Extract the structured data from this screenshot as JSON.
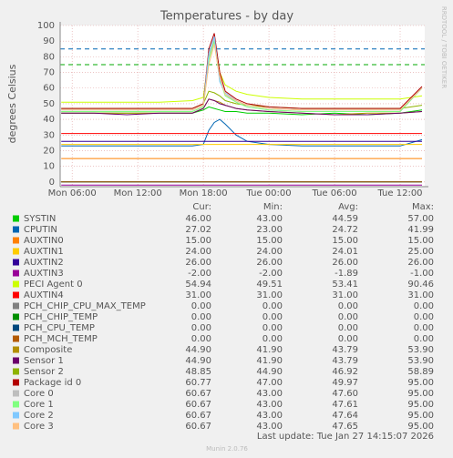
{
  "chart_data": {
    "type": "line",
    "title": "Temperatures - by day",
    "y_label": "degrees Celsius",
    "side_label": "RRDTOOL / TOBI OETIKER",
    "legend_headers": [
      "Cur:",
      "Min:",
      "Avg:",
      "Max:"
    ],
    "last_update": "Last update: Tue Jan 27 14:15:07 2026",
    "footer": "Munin 2.0.76",
    "grid": true,
    "xlim": [
      4.9,
      38.25
    ],
    "xticks": [
      {
        "value": 6,
        "label": "Mon 06:00"
      },
      {
        "value": 12,
        "label": "Mon 12:00"
      },
      {
        "value": 18,
        "label": "Mon 18:00"
      },
      {
        "value": 24,
        "label": "Tue 00:00"
      },
      {
        "value": 30,
        "label": "Tue 06:00"
      },
      {
        "value": 36,
        "label": "Tue 12:00"
      }
    ],
    "ylim": [
      -3,
      100
    ],
    "yticks": [
      0,
      10,
      20,
      30,
      40,
      50,
      60,
      70,
      80,
      90,
      100
    ],
    "hlines": [
      {
        "value": 85,
        "color": "#0066b3"
      },
      {
        "value": 75,
        "color": "#00aa00"
      }
    ],
    "x": [
      5,
      8,
      11,
      14,
      17,
      18,
      18.5,
      19,
      19.5,
      20,
      21,
      22,
      24,
      27,
      30,
      33,
      36,
      38
    ],
    "series": [
      {
        "name": "SYSTIN",
        "color": "#00cc00",
        "stats": [
          "46.00",
          "43.00",
          "44.59",
          "57.00"
        ],
        "values": [
          44,
          44,
          44,
          44,
          44,
          46,
          48,
          47,
          46,
          45,
          45,
          44,
          44,
          43,
          44,
          43,
          44,
          46
        ]
      },
      {
        "name": "CPUTIN",
        "color": "#0066b3",
        "stats": [
          "27.02",
          "23.00",
          "24.72",
          "41.99"
        ],
        "values": [
          23,
          23,
          23,
          23,
          23,
          24,
          33,
          38,
          40,
          37,
          30,
          26,
          24,
          23,
          23,
          23,
          23,
          27
        ]
      },
      {
        "name": "AUXTIN0",
        "color": "#ff8000",
        "stats": [
          "15.00",
          "15.00",
          "15.00",
          "15.00"
        ],
        "values": [
          15,
          15,
          15,
          15,
          15,
          15,
          15,
          15,
          15,
          15,
          15,
          15,
          15,
          15,
          15,
          15,
          15,
          15
        ]
      },
      {
        "name": "AUXTIN1",
        "color": "#ffcc00",
        "stats": [
          "24.00",
          "24.00",
          "24.01",
          "25.00"
        ],
        "values": [
          24,
          24,
          24,
          24,
          24,
          24,
          24,
          24,
          24,
          24,
          24,
          24,
          24,
          24,
          24,
          24,
          24,
          24
        ]
      },
      {
        "name": "AUXTIN2",
        "color": "#330099",
        "stats": [
          "26.00",
          "26.00",
          "26.00",
          "26.00"
        ],
        "values": [
          26,
          26,
          26,
          26,
          26,
          26,
          26,
          26,
          26,
          26,
          26,
          26,
          26,
          26,
          26,
          26,
          26,
          26
        ]
      },
      {
        "name": "AUXTIN3",
        "color": "#990099",
        "stats": [
          "-2.00",
          "-2.00",
          "-1.89",
          "-1.00"
        ],
        "values": [
          -2,
          -2,
          -2,
          -2,
          -2,
          -2,
          -2,
          -2,
          -2,
          -2,
          -2,
          -2,
          -2,
          -2,
          -2,
          -2,
          -2,
          -2
        ]
      },
      {
        "name": "PECI Agent 0",
        "color": "#ccff00",
        "stats": [
          "54.94",
          "49.51",
          "53.41",
          "90.46"
        ],
        "values": [
          51,
          51,
          51,
          51,
          52,
          54,
          80,
          90,
          70,
          62,
          58,
          56,
          54,
          53,
          53,
          53,
          53,
          55
        ]
      },
      {
        "name": "AUXTIN4",
        "color": "#ff0000",
        "stats": [
          "31.00",
          "31.00",
          "31.00",
          "31.00"
        ],
        "values": [
          31,
          31,
          31,
          31,
          31,
          31,
          31,
          31,
          31,
          31,
          31,
          31,
          31,
          31,
          31,
          31,
          31,
          31
        ]
      },
      {
        "name": "PCH_CHIP_CPU_MAX_TEMP",
        "color": "#808080",
        "stats": [
          "0.00",
          "0.00",
          "0.00",
          "0.00"
        ],
        "values": [
          0,
          0,
          0,
          0,
          0,
          0,
          0,
          0,
          0,
          0,
          0,
          0,
          0,
          0,
          0,
          0,
          0,
          0
        ]
      },
      {
        "name": "PCH_CHIP_TEMP",
        "color": "#008f00",
        "stats": [
          "0.00",
          "0.00",
          "0.00",
          "0.00"
        ],
        "values": [
          0,
          0,
          0,
          0,
          0,
          0,
          0,
          0,
          0,
          0,
          0,
          0,
          0,
          0,
          0,
          0,
          0,
          0
        ]
      },
      {
        "name": "PCH_CPU_TEMP",
        "color": "#00487d",
        "stats": [
          "0.00",
          "0.00",
          "0.00",
          "0.00"
        ],
        "values": [
          0,
          0,
          0,
          0,
          0,
          0,
          0,
          0,
          0,
          0,
          0,
          0,
          0,
          0,
          0,
          0,
          0,
          0
        ]
      },
      {
        "name": "PCH_MCH_TEMP",
        "color": "#b35a00",
        "stats": [
          "0.00",
          "0.00",
          "0.00",
          "0.00"
        ],
        "values": [
          0,
          0,
          0,
          0,
          0,
          0,
          0,
          0,
          0,
          0,
          0,
          0,
          0,
          0,
          0,
          0,
          0,
          0
        ]
      },
      {
        "name": "Composite",
        "color": "#b38f00",
        "stats": [
          "44.90",
          "41.90",
          "43.79",
          "53.90"
        ],
        "values": [
          44,
          44,
          44,
          44,
          44,
          47,
          53,
          52,
          51,
          49,
          47,
          46,
          45,
          44,
          43,
          44,
          44,
          45
        ]
      },
      {
        "name": "Sensor 1",
        "color": "#6b006b",
        "stats": [
          "44.90",
          "41.90",
          "43.79",
          "53.90"
        ],
        "values": [
          44,
          44,
          43,
          44,
          44,
          47,
          53,
          52,
          50,
          49,
          47,
          46,
          45,
          44,
          43,
          43,
          44,
          45
        ]
      },
      {
        "name": "Sensor 2",
        "color": "#8fb300",
        "stats": [
          "48.85",
          "44.90",
          "46.92",
          "58.89"
        ],
        "values": [
          47,
          47,
          47,
          47,
          47,
          50,
          58,
          57,
          55,
          52,
          50,
          49,
          48,
          47,
          47,
          47,
          47,
          49
        ]
      },
      {
        "name": "Package id 0",
        "color": "#b30000",
        "stats": [
          "60.77",
          "47.00",
          "49.97",
          "95.00"
        ],
        "values": [
          47,
          47,
          47,
          47,
          47,
          50,
          85,
          95,
          70,
          58,
          53,
          50,
          48,
          47,
          47,
          47,
          47,
          61
        ]
      },
      {
        "name": "Core 0",
        "color": "#bebebe",
        "stats": [
          "60.67",
          "43.00",
          "47.60",
          "95.00"
        ],
        "values": [
          45,
          45,
          45,
          45,
          45,
          48,
          80,
          92,
          65,
          56,
          51,
          48,
          46,
          45,
          45,
          45,
          45,
          60
        ]
      },
      {
        "name": "Core 1",
        "color": "#80ff80",
        "stats": [
          "60.67",
          "43.00",
          "47.61",
          "95.00"
        ],
        "values": [
          45,
          45,
          45,
          45,
          45,
          48,
          78,
          90,
          66,
          55,
          51,
          48,
          46,
          45,
          45,
          45,
          45,
          60
        ]
      },
      {
        "name": "Core 2",
        "color": "#80c9ff",
        "stats": [
          "60.67",
          "43.00",
          "47.64",
          "95.00"
        ],
        "values": [
          46,
          46,
          46,
          46,
          46,
          49,
          82,
          93,
          64,
          57,
          52,
          49,
          47,
          46,
          46,
          46,
          46,
          60
        ]
      },
      {
        "name": "Core 3",
        "color": "#ffc080",
        "stats": [
          "60.67",
          "43.00",
          "47.65",
          "95.00"
        ],
        "values": [
          46,
          46,
          46,
          46,
          46,
          49,
          75,
          88,
          67,
          56,
          52,
          49,
          47,
          46,
          46,
          46,
          46,
          60
        ]
      }
    ]
  }
}
